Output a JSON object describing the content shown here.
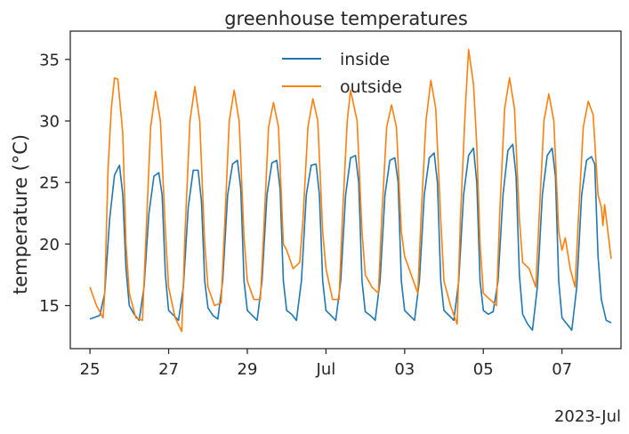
{
  "chart_data": {
    "type": "line",
    "title": "greenhouse temperatures",
    "xlabel": "",
    "ylabel": "temperature (°C)",
    "x_offset_label": "2023-Jul",
    "x_range": [
      "2023-06-24 12:00",
      "2023-07-08 12:00"
    ],
    "ylim": [
      11.5,
      37.3
    ],
    "x_ticks": [
      {
        "date": "2023-06-25",
        "label": "25"
      },
      {
        "date": "2023-06-27",
        "label": "27"
      },
      {
        "date": "2023-06-29",
        "label": "29"
      },
      {
        "date": "2023-07-01",
        "label": "Jul"
      },
      {
        "date": "2023-07-03",
        "label": "03"
      },
      {
        "date": "2023-07-05",
        "label": "05"
      },
      {
        "date": "2023-07-07",
        "label": "07"
      }
    ],
    "y_ticks": [
      15,
      20,
      25,
      30,
      35
    ],
    "grid": false,
    "legend_position": "top-center",
    "series": [
      {
        "name": "inside",
        "color": "#1f77b4",
        "points": [
          [
            "2023-06-25 00:00",
            13.9
          ],
          [
            "2023-06-25 06:00",
            14.2
          ],
          [
            "2023-06-25 09:00",
            16.0
          ],
          [
            "2023-06-25 12:00",
            22.0
          ],
          [
            "2023-06-25 15:00",
            25.6
          ],
          [
            "2023-06-25 18:00",
            26.4
          ],
          [
            "2023-06-25 20:00",
            24.0
          ],
          [
            "2023-06-25 22:00",
            18.0
          ],
          [
            "2023-06-26 00:00",
            15.0
          ],
          [
            "2023-06-26 03:00",
            14.3
          ],
          [
            "2023-06-26 06:00",
            13.8
          ],
          [
            "2023-06-26 09:00",
            16.5
          ],
          [
            "2023-06-26 12:00",
            22.5
          ],
          [
            "2023-06-26 15:00",
            25.5
          ],
          [
            "2023-06-26 18:00",
            25.8
          ],
          [
            "2023-06-26 20:00",
            24.0
          ],
          [
            "2023-06-26 22:00",
            17.5
          ],
          [
            "2023-06-27 00:00",
            14.6
          ],
          [
            "2023-06-27 03:00",
            14.2
          ],
          [
            "2023-06-27 06:00",
            13.8
          ],
          [
            "2023-06-27 09:00",
            16.5
          ],
          [
            "2023-06-27 12:00",
            23.0
          ],
          [
            "2023-06-27 15:00",
            26.0
          ],
          [
            "2023-06-27 18:00",
            26.0
          ],
          [
            "2023-06-27 20:00",
            23.5
          ],
          [
            "2023-06-27 22:00",
            17.0
          ],
          [
            "2023-06-28 00:00",
            14.8
          ],
          [
            "2023-06-28 03:00",
            14.2
          ],
          [
            "2023-06-28 06:00",
            13.9
          ],
          [
            "2023-06-28 09:00",
            17.0
          ],
          [
            "2023-06-28 12:00",
            24.0
          ],
          [
            "2023-06-28 15:00",
            26.5
          ],
          [
            "2023-06-28 18:00",
            26.8
          ],
          [
            "2023-06-28 20:00",
            24.5
          ],
          [
            "2023-06-28 22:00",
            17.0
          ],
          [
            "2023-06-29 00:00",
            14.6
          ],
          [
            "2023-06-29 03:00",
            14.2
          ],
          [
            "2023-06-29 06:00",
            13.8
          ],
          [
            "2023-06-29 09:00",
            17.0
          ],
          [
            "2023-06-29 12:00",
            24.0
          ],
          [
            "2023-06-29 15:00",
            26.6
          ],
          [
            "2023-06-29 18:00",
            26.8
          ],
          [
            "2023-06-29 20:00",
            24.5
          ],
          [
            "2023-06-29 22:00",
            17.0
          ],
          [
            "2023-06-30 00:00",
            14.6
          ],
          [
            "2023-06-30 03:00",
            14.3
          ],
          [
            "2023-06-30 06:00",
            13.8
          ],
          [
            "2023-06-30 09:00",
            17.0
          ],
          [
            "2023-06-30 12:00",
            24.0
          ],
          [
            "2023-06-30 15:00",
            26.4
          ],
          [
            "2023-06-30 18:00",
            26.5
          ],
          [
            "2023-06-30 20:00",
            24.0
          ],
          [
            "2023-06-30 22:00",
            17.0
          ],
          [
            "2023-07-01 00:00",
            14.6
          ],
          [
            "2023-07-01 03:00",
            14.2
          ],
          [
            "2023-07-01 06:00",
            13.8
          ],
          [
            "2023-07-01 09:00",
            17.0
          ],
          [
            "2023-07-01 12:00",
            24.0
          ],
          [
            "2023-07-01 15:00",
            27.0
          ],
          [
            "2023-07-01 18:00",
            27.2
          ],
          [
            "2023-07-01 20:00",
            25.0
          ],
          [
            "2023-07-01 22:00",
            17.0
          ],
          [
            "2023-07-02 00:00",
            14.5
          ],
          [
            "2023-07-02 03:00",
            14.2
          ],
          [
            "2023-07-02 06:00",
            13.8
          ],
          [
            "2023-07-02 09:00",
            17.0
          ],
          [
            "2023-07-02 12:00",
            24.0
          ],
          [
            "2023-07-02 15:00",
            26.8
          ],
          [
            "2023-07-02 18:00",
            27.0
          ],
          [
            "2023-07-02 20:00",
            25.0
          ],
          [
            "2023-07-02 22:00",
            17.0
          ],
          [
            "2023-07-03 00:00",
            14.6
          ],
          [
            "2023-07-03 03:00",
            14.2
          ],
          [
            "2023-07-03 06:00",
            13.8
          ],
          [
            "2023-07-03 09:00",
            17.0
          ],
          [
            "2023-07-03 12:00",
            24.0
          ],
          [
            "2023-07-03 15:00",
            27.0
          ],
          [
            "2023-07-03 18:00",
            27.4
          ],
          [
            "2023-07-03 20:00",
            25.0
          ],
          [
            "2023-07-03 22:00",
            17.0
          ],
          [
            "2023-07-04 00:00",
            14.6
          ],
          [
            "2023-07-04 03:00",
            14.2
          ],
          [
            "2023-07-04 06:00",
            13.8
          ],
          [
            "2023-07-04 09:00",
            17.0
          ],
          [
            "2023-07-04 12:00",
            24.0
          ],
          [
            "2023-07-04 15:00",
            27.2
          ],
          [
            "2023-07-04 18:00",
            27.8
          ],
          [
            "2023-07-04 20:00",
            25.0
          ],
          [
            "2023-07-04 22:00",
            17.0
          ],
          [
            "2023-07-05 00:00",
            14.6
          ],
          [
            "2023-07-05 03:00",
            14.3
          ],
          [
            "2023-07-05 06:00",
            14.5
          ],
          [
            "2023-07-05 09:00",
            17.0
          ],
          [
            "2023-07-05 12:00",
            24.0
          ],
          [
            "2023-07-05 15:00",
            27.6
          ],
          [
            "2023-07-05 18:00",
            28.1
          ],
          [
            "2023-07-05 20:00",
            25.5
          ],
          [
            "2023-07-05 22:00",
            17.5
          ],
          [
            "2023-07-06 00:00",
            14.3
          ],
          [
            "2023-07-06 03:00",
            13.5
          ],
          [
            "2023-07-06 06:00",
            13.0
          ],
          [
            "2023-07-06 09:00",
            16.5
          ],
          [
            "2023-07-06 12:00",
            24.0
          ],
          [
            "2023-07-06 15:00",
            27.2
          ],
          [
            "2023-07-06 18:00",
            27.8
          ],
          [
            "2023-07-06 20:00",
            25.5
          ],
          [
            "2023-07-06 22:00",
            17.0
          ],
          [
            "2023-07-07 00:00",
            14.0
          ],
          [
            "2023-07-07 03:00",
            13.5
          ],
          [
            "2023-07-07 06:00",
            13.0
          ],
          [
            "2023-07-07 09:00",
            16.5
          ],
          [
            "2023-07-07 12:00",
            24.0
          ],
          [
            "2023-07-07 15:00",
            26.8
          ],
          [
            "2023-07-07 18:00",
            27.1
          ],
          [
            "2023-07-07 20:00",
            26.5
          ],
          [
            "2023-07-07 22:00",
            19.0
          ],
          [
            "2023-07-08 00:00",
            15.5
          ],
          [
            "2023-07-08 03:00",
            13.8
          ],
          [
            "2023-07-08 06:00",
            13.6
          ]
        ]
      },
      {
        "name": "outside",
        "color": "#ff7f0e",
        "points": [
          [
            "2023-06-25 00:00",
            16.5
          ],
          [
            "2023-06-25 04:00",
            15.0
          ],
          [
            "2023-06-25 08:00",
            14.0
          ],
          [
            "2023-06-25 09:00",
            16.0
          ],
          [
            "2023-06-25 11:00",
            26.0
          ],
          [
            "2023-06-25 13:00",
            31.0
          ],
          [
            "2023-06-25 15:00",
            33.5
          ],
          [
            "2023-06-25 17:00",
            33.4
          ],
          [
            "2023-06-25 20:00",
            29.0
          ],
          [
            "2023-06-25 22:00",
            20.0
          ],
          [
            "2023-06-26 00:00",
            16.0
          ],
          [
            "2023-06-26 04:00",
            14.0
          ],
          [
            "2023-06-26 08:00",
            13.8
          ],
          [
            "2023-06-26 10:00",
            20.0
          ],
          [
            "2023-06-26 13:00",
            29.5
          ],
          [
            "2023-06-26 16:00",
            32.4
          ],
          [
            "2023-06-26 19:00",
            30.0
          ],
          [
            "2023-06-26 22:00",
            21.0
          ],
          [
            "2023-06-27 00:00",
            16.5
          ],
          [
            "2023-06-27 04:00",
            14.0
          ],
          [
            "2023-06-27 08:00",
            12.9
          ],
          [
            "2023-06-27 10:00",
            21.0
          ],
          [
            "2023-06-27 13:00",
            30.0
          ],
          [
            "2023-06-27 16:00",
            32.8
          ],
          [
            "2023-06-27 19:00",
            30.0
          ],
          [
            "2023-06-27 22:00",
            20.0
          ],
          [
            "2023-06-28 00:00",
            16.5
          ],
          [
            "2023-06-28 04:00",
            15.0
          ],
          [
            "2023-06-28 08:00",
            15.2
          ],
          [
            "2023-06-28 10:00",
            21.0
          ],
          [
            "2023-06-28 13:00",
            30.0
          ],
          [
            "2023-06-28 16:00",
            32.5
          ],
          [
            "2023-06-28 19:00",
            30.0
          ],
          [
            "2023-06-28 22:00",
            20.5
          ],
          [
            "2023-06-29 00:00",
            17.0
          ],
          [
            "2023-06-29 04:00",
            15.5
          ],
          [
            "2023-06-29 08:00",
            15.5
          ],
          [
            "2023-06-29 10:00",
            21.0
          ],
          [
            "2023-06-29 13:00",
            29.5
          ],
          [
            "2023-06-29 16:00",
            31.5
          ],
          [
            "2023-06-29 19:00",
            29.5
          ],
          [
            "2023-06-29 22:00",
            20.0
          ],
          [
            "2023-06-30 00:00",
            19.5
          ],
          [
            "2023-06-30 04:00",
            18.0
          ],
          [
            "2023-06-30 08:00",
            18.5
          ],
          [
            "2023-06-30 10:00",
            22.0
          ],
          [
            "2023-06-30 13:00",
            29.5
          ],
          [
            "2023-06-30 16:00",
            31.8
          ],
          [
            "2023-06-30 19:00",
            30.0
          ],
          [
            "2023-06-30 22:00",
            21.0
          ],
          [
            "2023-07-01 00:00",
            18.0
          ],
          [
            "2023-07-01 04:00",
            15.5
          ],
          [
            "2023-07-01 08:00",
            15.5
          ],
          [
            "2023-07-01 10:00",
            22.0
          ],
          [
            "2023-07-01 13:00",
            30.0
          ],
          [
            "2023-07-01 15:00",
            32.5
          ],
          [
            "2023-07-01 19:00",
            30.0
          ],
          [
            "2023-07-01 22:00",
            21.0
          ],
          [
            "2023-07-02 00:00",
            17.5
          ],
          [
            "2023-07-02 04:00",
            16.5
          ],
          [
            "2023-07-02 08:00",
            16.0
          ],
          [
            "2023-07-02 10:00",
            22.0
          ],
          [
            "2023-07-02 13:00",
            29.5
          ],
          [
            "2023-07-02 16:00",
            31.3
          ],
          [
            "2023-07-02 19:00",
            29.5
          ],
          [
            "2023-07-02 22:00",
            21.0
          ],
          [
            "2023-07-03 00:00",
            19.0
          ],
          [
            "2023-07-03 04:00",
            17.5
          ],
          [
            "2023-07-03 08:00",
            16.0
          ],
          [
            "2023-07-03 10:00",
            22.0
          ],
          [
            "2023-07-03 13:00",
            30.0
          ],
          [
            "2023-07-03 16:00",
            33.3
          ],
          [
            "2023-07-03 19:00",
            31.0
          ],
          [
            "2023-07-03 22:00",
            22.0
          ],
          [
            "2023-07-04 00:00",
            17.0
          ],
          [
            "2023-07-04 04:00",
            15.0
          ],
          [
            "2023-07-04 08:00",
            13.5
          ],
          [
            "2023-07-04 10:00",
            22.0
          ],
          [
            "2023-07-04 13:00",
            31.0
          ],
          [
            "2023-07-04 15:00",
            35.8
          ],
          [
            "2023-07-04 18:00",
            33.0
          ],
          [
            "2023-07-04 20:00",
            28.0
          ],
          [
            "2023-07-04 22:00",
            20.0
          ],
          [
            "2023-07-05 00:00",
            16.0
          ],
          [
            "2023-07-05 04:00",
            15.5
          ],
          [
            "2023-07-05 08:00",
            15.0
          ],
          [
            "2023-07-05 10:00",
            22.5
          ],
          [
            "2023-07-05 13:00",
            31.0
          ],
          [
            "2023-07-05 16:00",
            33.5
          ],
          [
            "2023-07-05 19:00",
            31.0
          ],
          [
            "2023-07-05 22:00",
            22.0
          ],
          [
            "2023-07-06 00:00",
            18.5
          ],
          [
            "2023-07-06 04:00",
            18.0
          ],
          [
            "2023-07-06 08:00",
            16.5
          ],
          [
            "2023-07-06 10:00",
            22.0
          ],
          [
            "2023-07-06 13:00",
            30.0
          ],
          [
            "2023-07-06 16:00",
            32.2
          ],
          [
            "2023-07-06 19:00",
            30.0
          ],
          [
            "2023-07-06 22:00",
            21.0
          ],
          [
            "2023-07-07 00:00",
            19.5
          ],
          [
            "2023-07-07 02:00",
            20.5
          ],
          [
            "2023-07-07 05:00",
            18.0
          ],
          [
            "2023-07-07 08:00",
            16.5
          ],
          [
            "2023-07-07 10:00",
            22.0
          ],
          [
            "2023-07-07 13:00",
            29.5
          ],
          [
            "2023-07-07 16:00",
            31.6
          ],
          [
            "2023-07-07 19:00",
            30.5
          ],
          [
            "2023-07-07 22:00",
            24.0
          ],
          [
            "2023-07-08 00:00",
            23.0
          ],
          [
            "2023-07-08 01:00",
            21.5
          ],
          [
            "2023-07-08 02:00",
            23.2
          ],
          [
            "2023-07-08 04:00",
            21.0
          ],
          [
            "2023-07-08 06:00",
            18.8
          ]
        ]
      }
    ]
  }
}
